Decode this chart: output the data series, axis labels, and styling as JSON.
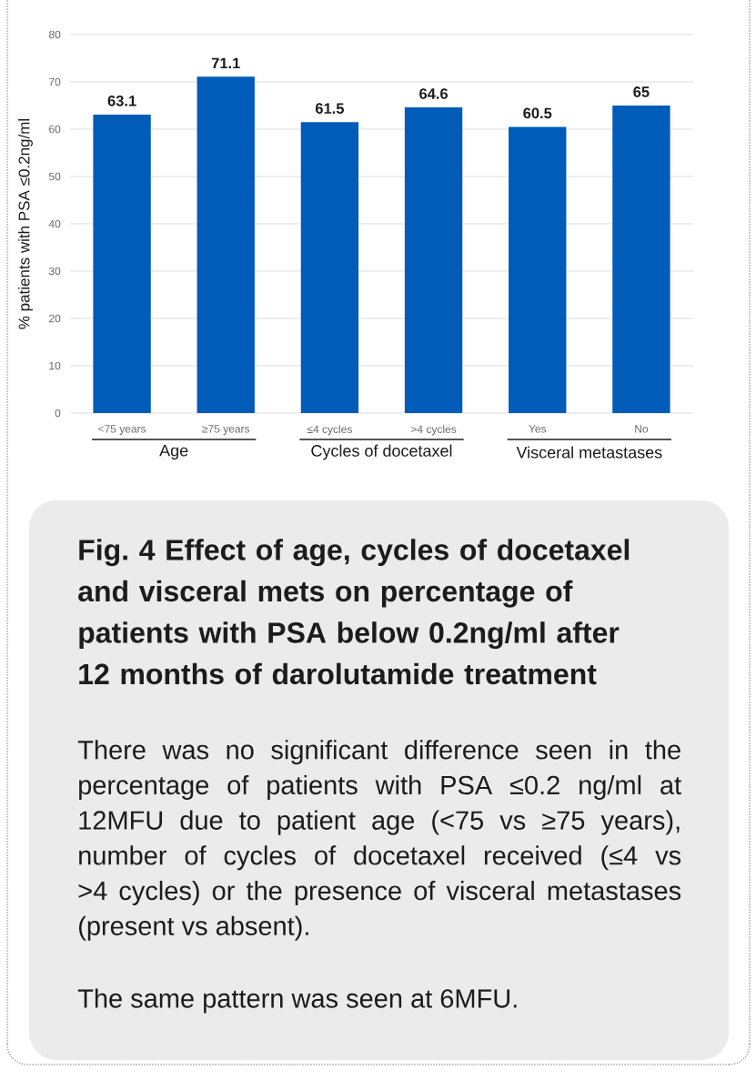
{
  "chart_data": {
    "type": "bar",
    "title": "Fig. 4 Effect of age, cycles of docetaxel and visceral mets on percentage of patients with PSA below 0.2ng/ml after 12 months of darolutamide treatment",
    "ylabel": "% patients with PSA ≤0.2ng/ml",
    "categories": [
      "<75 years",
      "≥75 years",
      "≤4 cycles",
      ">4 cycles",
      "Yes",
      "No"
    ],
    "values": [
      63.1,
      71.1,
      61.5,
      64.6,
      60.5,
      65
    ],
    "color": "#005cb9",
    "ylim": [
      0,
      80
    ],
    "yticks": [
      0,
      10,
      20,
      30,
      40,
      50,
      60,
      70,
      80
    ],
    "grid": "y",
    "data_labels": true,
    "annotations": [
      "Age",
      "Cycles of docetaxel",
      "Visceral metastases",
      "There was no significant difference seen in the percentage of patients with PSA ≤0.2 ng/ml at 12MFU due to patient age (<75 vs ≥75 years), number of cycles of docetaxel received (≤4 vs >4 cycles) or the presence of visceral metastases (present vs absent).",
      "The same pattern was seen at 6MFU."
    ]
  }
}
